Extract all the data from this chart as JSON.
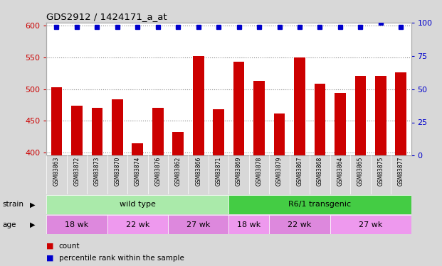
{
  "title": "GDS2912 / 1424171_a_at",
  "samples": [
    "GSM83863",
    "GSM83872",
    "GSM83873",
    "GSM83870",
    "GSM83874",
    "GSM83876",
    "GSM83862",
    "GSM83866",
    "GSM83871",
    "GSM83869",
    "GSM83878",
    "GSM83879",
    "GSM83867",
    "GSM83868",
    "GSM83864",
    "GSM83865",
    "GSM83875",
    "GSM83877"
  ],
  "counts": [
    503,
    474,
    471,
    484,
    414,
    471,
    432,
    552,
    468,
    543,
    513,
    462,
    550,
    508,
    494,
    521,
    521,
    526
  ],
  "percentiles": [
    97,
    97,
    97,
    97,
    97,
    97,
    97,
    97,
    97,
    97,
    97,
    97,
    97,
    97,
    97,
    97,
    100,
    97
  ],
  "bar_color": "#cc0000",
  "dot_color": "#0000cc",
  "ylim_left": [
    395,
    605
  ],
  "ylim_right": [
    0,
    100
  ],
  "yticks_left": [
    400,
    450,
    500,
    550,
    600
  ],
  "yticks_right": [
    0,
    25,
    50,
    75,
    100
  ],
  "legend": [
    {
      "label": "count",
      "color": "#cc0000"
    },
    {
      "label": "percentile rank within the sample",
      "color": "#0000cc"
    }
  ],
  "background_color": "#d8d8d8",
  "plot_bg_color": "#ffffff",
  "dotted_grid_color": "#888888",
  "strain_wt_color": "#aaeaaa",
  "strain_r61_color": "#44cc44",
  "age_colors": [
    "#dd88dd",
    "#ee99ee",
    "#dd88dd",
    "#ee99ee",
    "#dd88dd",
    "#ee99ee"
  ]
}
